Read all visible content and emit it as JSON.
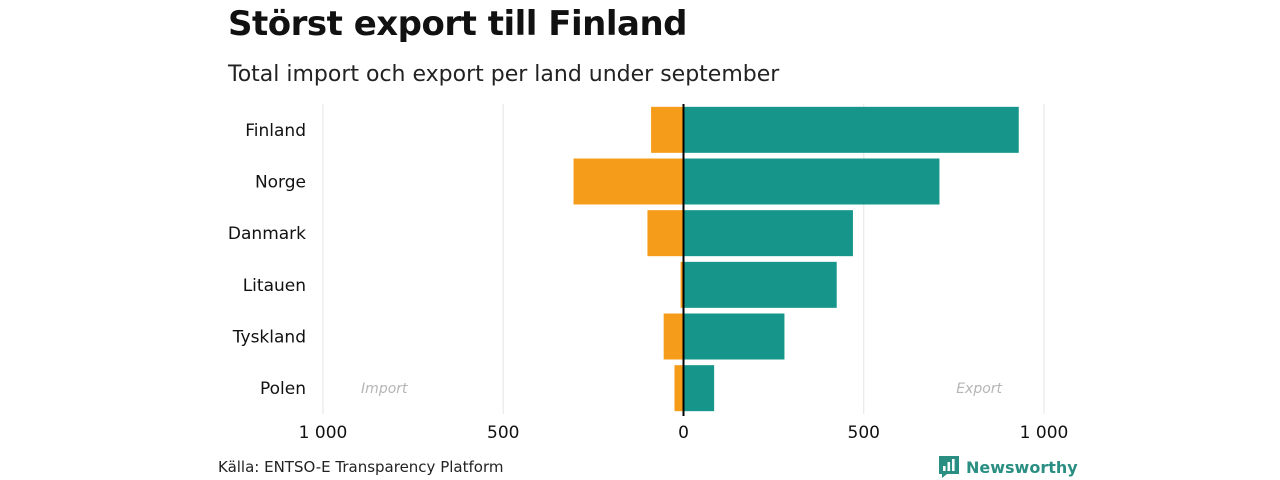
{
  "title": "Störst export till Finland",
  "subtitle": "Total import och export per land under september",
  "source": "Källa: ENTSO-E Transparency Platform",
  "brand": "Newsworthy",
  "colors": {
    "import": "#f59c1a",
    "export": "#16968a",
    "grid": "#e6e6e6",
    "annotation": "#b5b5b5",
    "brand": "#2a8f82"
  },
  "chart_data": {
    "type": "bar",
    "orientation": "horizontal",
    "diverging": true,
    "categories": [
      "Finland",
      "Norge",
      "Danmark",
      "Litauen",
      "Tyskland",
      "Polen"
    ],
    "series": [
      {
        "name": "Import",
        "values": [
          90,
          305,
          100,
          8,
          55,
          25
        ]
      },
      {
        "name": "Export",
        "values": [
          930,
          710,
          470,
          425,
          280,
          85
        ]
      }
    ],
    "xlim": [
      -1000,
      1000
    ],
    "xticks": [
      -1000,
      -500,
      0,
      500,
      1000
    ],
    "xtick_labels": [
      "1 000",
      "500",
      "0",
      "500",
      "1 000"
    ],
    "annotations": {
      "left": "Import",
      "right": "Export"
    },
    "grid": true
  }
}
